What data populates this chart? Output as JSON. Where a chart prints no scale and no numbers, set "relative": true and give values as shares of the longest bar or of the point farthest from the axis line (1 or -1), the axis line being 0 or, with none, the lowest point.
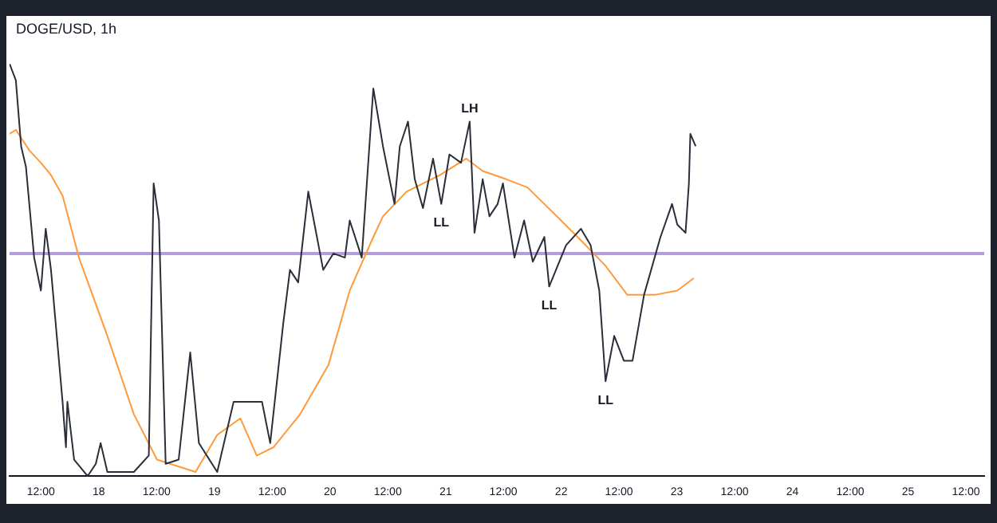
{
  "chart_data": {
    "type": "line",
    "title": "DOGE/USD, 1h",
    "relative": true,
    "legend": false,
    "grid": false,
    "marker": "none",
    "line_style": "solid",
    "xlim": [
      "--08-17T05:30",
      "--08-25T15:48"
    ],
    "xticks": [
      {
        "value": "--08-17T12:00",
        "label": "12:00"
      },
      {
        "value": "--08-18",
        "label": "18"
      },
      {
        "value": "--08-18T12:00",
        "label": "12:00"
      },
      {
        "value": "--08-19",
        "label": "19"
      },
      {
        "value": "--08-19T12:00",
        "label": "12:00"
      },
      {
        "value": "--08-20",
        "label": "20"
      },
      {
        "value": "--08-20T12:00",
        "label": "12:00"
      },
      {
        "value": "--08-21",
        "label": "21"
      },
      {
        "value": "--08-21T12:00",
        "label": "12:00"
      },
      {
        "value": "--08-22",
        "label": "22"
      },
      {
        "value": "--08-22T12:00",
        "label": "12:00"
      },
      {
        "value": "--08-23",
        "label": "23"
      },
      {
        "value": "--08-23T12:00",
        "label": "12:00"
      },
      {
        "value": "--08-24",
        "label": "24"
      },
      {
        "value": "--08-24T12:00",
        "label": "12:00"
      },
      {
        "value": "--08-25",
        "label": "25"
      },
      {
        "value": "--08-25T12:00",
        "label": "12:00"
      }
    ],
    "series": [
      {
        "color": "#2a2e39",
        "x": [
          "--08-17T05:30",
          "--08-17T06:48",
          "--08-17T07:54",
          "--08-17T08:54",
          "--08-17T10:36",
          "--08-17T12:00",
          "--08-17T13:00",
          "--08-17T14:06",
          "--08-17T16:30",
          "--08-17T17:12",
          "--08-17T17:30",
          "--08-17T18:54",
          "--08-17T21:42",
          "--08-17T23:24",
          "--08-18T00:24",
          "--08-18T01:48",
          "--08-18T07:18",
          "--08-18T10:24",
          "--08-18T11:24",
          "--08-18T12:30",
          "--08-18T13:54",
          "--08-18T16:36",
          "--08-18T19:00",
          "--08-18T20:48",
          "--08-19T00:36",
          "--08-19T04:00",
          "--08-19T09:54",
          "--08-19T11:36",
          "--08-19T14:18",
          "--08-19T15:42",
          "--08-19T17:24",
          "--08-19T19:30",
          "--08-19T22:36",
          "--08-20T00:42",
          "--08-20T03:06",
          "--08-20T04:06",
          "--08-20T06:36",
          "--08-20T09:00",
          "--08-20T11:00",
          "--08-20T13:24",
          "--08-20T14:30",
          "--08-20T16:12",
          "--08-20T17:36",
          "--08-20T19:18",
          "--08-20T21:24",
          "--08-20T23:06",
          "--08-21T00:48",
          "--08-21T03:12",
          "--08-21T05:00",
          "--08-21T06:00",
          "--08-21T07:42",
          "--08-21T09:06",
          "--08-21T10:48",
          "--08-21T11:54",
          "--08-21T14:18",
          "--08-21T16:18",
          "--08-21T18:06",
          "--08-21T20:30",
          "--08-21T21:30",
          "--08-22T01:00",
          "--08-22T04:06",
          "--08-22T06:06",
          "--08-22T07:54",
          "--08-22T09:12",
          "--08-22T11:00",
          "--08-22T13:00",
          "--08-22T14:48",
          "--08-22T17:12",
          "--08-22T20:36",
          "--08-22T23:00",
          "--08-23T00:06",
          "--08-23T01:48",
          "--08-23T02:30",
          "--08-23T02:48",
          "--08-23T03:54"
        ],
        "values": [
          1,
          0.96,
          0.8,
          0.75,
          0.53,
          0.45,
          0.6,
          0.5,
          0.18,
          0.07,
          0.18,
          0.04,
          0,
          0.03,
          0.08,
          0.01,
          0.01,
          0.05,
          0.71,
          0.62,
          0.03,
          0.04,
          0.3,
          0.08,
          0.01,
          0.18,
          0.18,
          0.08,
          0.37,
          0.5,
          0.47,
          0.69,
          0.5,
          0.54,
          0.53,
          0.62,
          0.53,
          0.94,
          0.8,
          0.66,
          0.8,
          0.86,
          0.72,
          0.65,
          0.77,
          0.66,
          0.78,
          0.76,
          0.86,
          0.59,
          0.72,
          0.63,
          0.66,
          0.71,
          0.53,
          0.62,
          0.52,
          0.58,
          0.46,
          0.56,
          0.6,
          0.56,
          0.45,
          0.23,
          0.34,
          0.28,
          0.28,
          0.44,
          0.58,
          0.66,
          0.61,
          0.59,
          0.71,
          0.83,
          0.8
        ]
      },
      {
        "color": "#ff9a3c",
        "x": [
          "--08-17T05:30",
          "--08-17T06:48",
          "--08-17T09:36",
          "--08-17T12:00",
          "--08-17T14:06",
          "--08-17T16:30",
          "--08-17T19:54",
          "--08-18T01:48",
          "--08-18T07:18",
          "--08-18T12:06",
          "--08-18T20:06",
          "--08-19T00:36",
          "--08-19T05:24",
          "--08-19T08:48",
          "--08-19T12:18",
          "--08-19T17:48",
          "--08-19T23:42",
          "--08-20T04:06",
          "--08-20T09:00",
          "--08-20T11:00",
          "--08-20T15:54",
          "--08-20T22:48",
          "--08-21T04:18",
          "--08-21T07:42",
          "--08-21T12:36",
          "--08-21T17:00",
          "--08-21T20:30",
          "--08-22T03:24",
          "--08-22T09:12",
          "--08-22T13:42",
          "--08-22T19:36",
          "--08-23T00:06",
          "--08-23T03:30"
        ],
        "values": [
          0.83,
          0.84,
          0.79,
          0.76,
          0.73,
          0.68,
          0.53,
          0.34,
          0.15,
          0.04,
          0.01,
          0.1,
          0.14,
          0.05,
          0.07,
          0.15,
          0.27,
          0.45,
          0.58,
          0.63,
          0.69,
          0.73,
          0.77,
          0.74,
          0.72,
          0.7,
          0.66,
          0.58,
          0.51,
          0.44,
          0.44,
          0.45,
          0.48
        ]
      }
    ],
    "ref_lines": [
      {
        "axis": "y",
        "value": 0.54,
        "color": "#b39ddb"
      }
    ],
    "annotations": [
      {
        "text": "LH",
        "x": "--08-21T05:00",
        "y": 0.86
      },
      {
        "text": "LL",
        "x": "--08-20T23:06",
        "y": 0.66
      },
      {
        "text": "LL",
        "x": "--08-21T21:30",
        "y": 0.46
      },
      {
        "text": "LL",
        "x": "--08-22T09:12",
        "y": 0.23
      }
    ]
  }
}
